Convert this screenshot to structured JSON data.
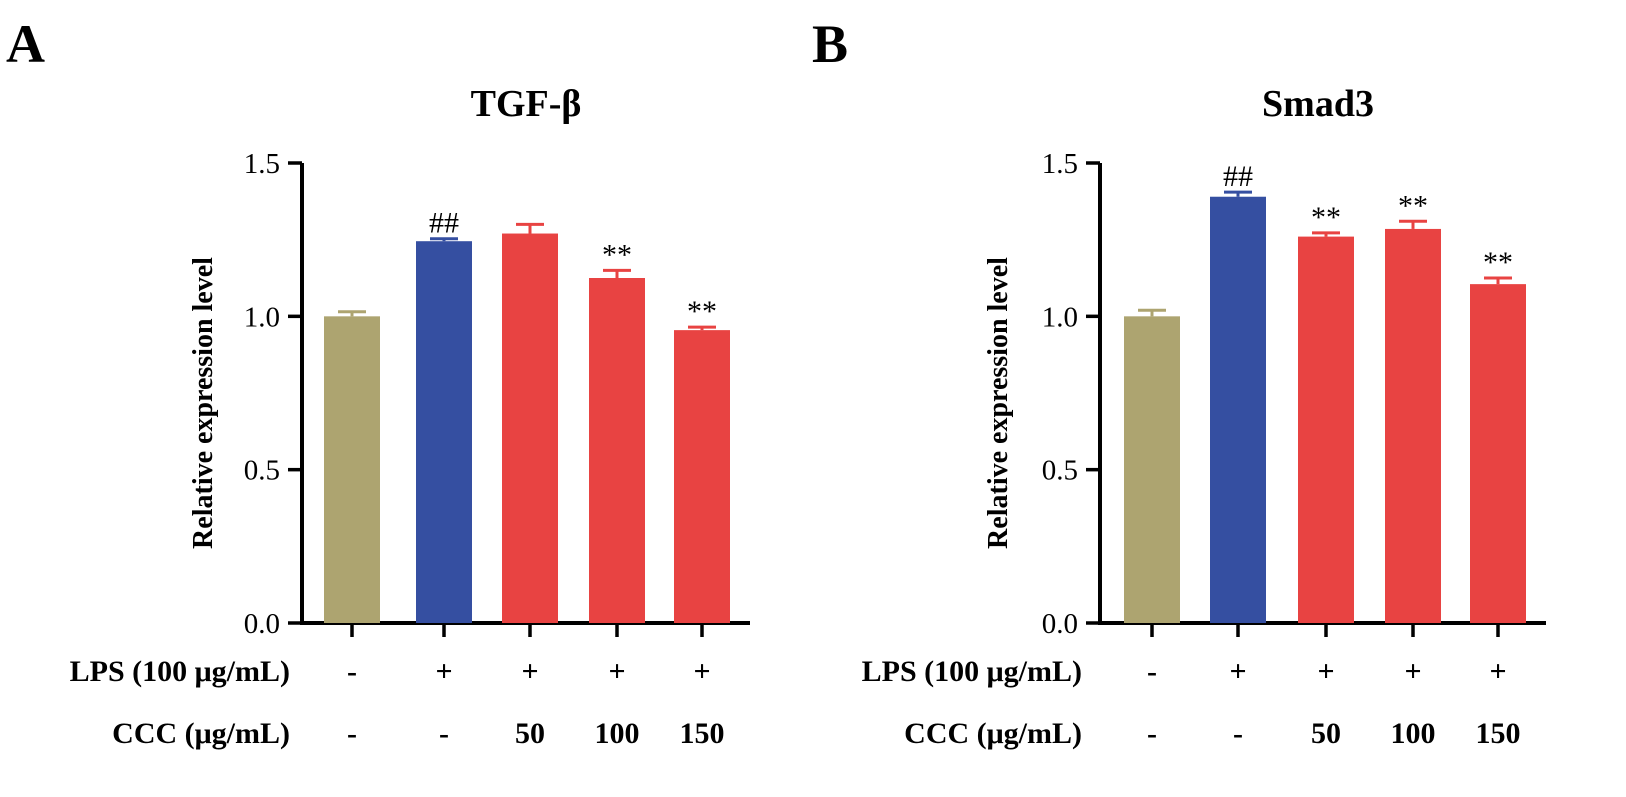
{
  "chart_data": [
    {
      "type": "bar",
      "panel": "A",
      "title": "TGF-β",
      "ylabel": "Relative expression level",
      "ylim": [
        0,
        1.5
      ],
      "yticks": [
        "0.0",
        "0.5",
        "1.0",
        "1.5"
      ],
      "categories": [
        "Control",
        "LPS",
        "LPS+CCC 50",
        "LPS+CCC 100",
        "LPS+CCC 150"
      ],
      "values": [
        1.0,
        1.245,
        1.27,
        1.125,
        0.955
      ],
      "errors": [
        0.015,
        0.008,
        0.03,
        0.025,
        0.01
      ],
      "colors": [
        "#ada470",
        "#354fa1",
        "#e84342",
        "#e84342",
        "#e84342"
      ],
      "annotations": [
        "",
        "##",
        "",
        "**",
        "**"
      ],
      "conditions": [
        {
          "label": "LPS (100 μg/mL)",
          "values": [
            "-",
            "+",
            "+",
            "+",
            "+"
          ]
        },
        {
          "label": "CCC (μg/mL)",
          "values": [
            "-",
            "-",
            "50",
            "100",
            "150"
          ]
        }
      ]
    },
    {
      "type": "bar",
      "panel": "B",
      "title": "Smad3",
      "ylabel": "Relative expression level",
      "ylim": [
        0,
        1.5
      ],
      "yticks": [
        "0.0",
        "0.5",
        "1.0",
        "1.5"
      ],
      "categories": [
        "Control",
        "LPS",
        "LPS+CCC 50",
        "LPS+CCC 100",
        "LPS+CCC 150"
      ],
      "values": [
        1.0,
        1.39,
        1.26,
        1.285,
        1.105
      ],
      "errors": [
        0.02,
        0.015,
        0.012,
        0.025,
        0.02
      ],
      "colors": [
        "#ada470",
        "#354fa1",
        "#e84342",
        "#e84342",
        "#e84342"
      ],
      "annotations": [
        "",
        "##",
        "**",
        "**",
        "**"
      ],
      "conditions": [
        {
          "label": "LPS (100 μg/mL)",
          "values": [
            "-",
            "+",
            "+",
            "+",
            "+"
          ]
        },
        {
          "label": "CCC (μg/mL)",
          "values": [
            "-",
            "-",
            "50",
            "100",
            "150"
          ]
        }
      ]
    }
  ]
}
